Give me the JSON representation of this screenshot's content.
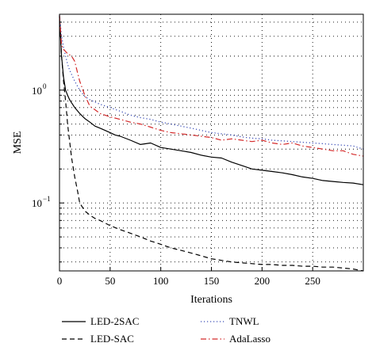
{
  "chart_data": {
    "type": "line",
    "xlabel": "Iterations",
    "ylabel": "MSE",
    "xlim": [
      0,
      300
    ],
    "ylim": [
      0.025,
      4.7
    ],
    "yscale": "log",
    "grid": true,
    "legend": "bottom",
    "x_ticks": [
      0,
      50,
      100,
      150,
      200,
      250
    ],
    "y_ticks": [
      {
        "value": 1,
        "base": "10",
        "exp": "0"
      },
      {
        "value": 0.1,
        "base": "10",
        "exp": "−1"
      }
    ],
    "series": [
      {
        "name": "LED-2SAC",
        "style": "solid",
        "color": "#000000",
        "x": [
          0,
          2,
          4,
          6,
          8,
          10,
          15,
          20,
          25,
          30,
          35,
          40,
          45,
          50,
          55,
          60,
          70,
          80,
          90,
          100,
          110,
          120,
          130,
          140,
          150,
          160,
          170,
          180,
          190,
          200,
          210,
          220,
          230,
          240,
          250,
          260,
          270,
          280,
          290,
          300
        ],
        "y": [
          4.5,
          2.0,
          1.3,
          1.0,
          0.9,
          0.82,
          0.7,
          0.62,
          0.56,
          0.52,
          0.48,
          0.46,
          0.44,
          0.42,
          0.4,
          0.39,
          0.36,
          0.33,
          0.34,
          0.31,
          0.3,
          0.29,
          0.28,
          0.265,
          0.255,
          0.25,
          0.23,
          0.215,
          0.2,
          0.195,
          0.19,
          0.185,
          0.178,
          0.17,
          0.165,
          0.158,
          0.155,
          0.152,
          0.15,
          0.145
        ]
      },
      {
        "name": "LED-SAC",
        "style": "dashed",
        "color": "#000000",
        "x": [
          0,
          2,
          4,
          6,
          8,
          10,
          12,
          15,
          18,
          20,
          25,
          30,
          35,
          40,
          50,
          60,
          70,
          80,
          90,
          100,
          110,
          120,
          130,
          140,
          150,
          160,
          170,
          180,
          190,
          200,
          210,
          220,
          230,
          240,
          250,
          260,
          270,
          280,
          290,
          300
        ],
        "y": [
          4.5,
          2.0,
          1.2,
          0.8,
          0.5,
          0.35,
          0.25,
          0.17,
          0.125,
          0.1,
          0.085,
          0.078,
          0.073,
          0.07,
          0.063,
          0.058,
          0.054,
          0.05,
          0.046,
          0.043,
          0.04,
          0.038,
          0.036,
          0.034,
          0.032,
          0.031,
          0.03,
          0.0295,
          0.029,
          0.0285,
          0.0285,
          0.028,
          0.028,
          0.0275,
          0.0275,
          0.027,
          0.027,
          0.0265,
          0.026,
          0.025
        ]
      },
      {
        "name": "TNWL",
        "style": "dotted",
        "color": "#3c4fb8",
        "x": [
          0,
          2,
          4,
          6,
          8,
          10,
          15,
          20,
          25,
          30,
          40,
          50,
          60,
          70,
          80,
          90,
          100,
          110,
          120,
          130,
          140,
          150,
          160,
          170,
          180,
          190,
          200,
          210,
          220,
          230,
          240,
          250,
          260,
          270,
          280,
          290,
          300
        ],
        "y": [
          4.6,
          3.0,
          2.4,
          2.0,
          1.7,
          1.5,
          1.2,
          1.0,
          0.88,
          0.82,
          0.75,
          0.7,
          0.65,
          0.6,
          0.57,
          0.55,
          0.52,
          0.5,
          0.48,
          0.46,
          0.44,
          0.42,
          0.41,
          0.4,
          0.385,
          0.375,
          0.37,
          0.36,
          0.355,
          0.35,
          0.345,
          0.34,
          0.335,
          0.33,
          0.325,
          0.32,
          0.3
        ]
      },
      {
        "name": "AdaLasso",
        "style": "dashdot",
        "color": "#d42a2a",
        "x": [
          0,
          2,
          4,
          6,
          8,
          10,
          12,
          15,
          18,
          20,
          25,
          30,
          35,
          40,
          50,
          60,
          70,
          80,
          90,
          100,
          110,
          120,
          130,
          140,
          150,
          160,
          170,
          180,
          190,
          200,
          210,
          220,
          230,
          240,
          250,
          260,
          270,
          280,
          290,
          300
        ],
        "y": [
          4.6,
          2.5,
          2.3,
          2.2,
          2.1,
          2.05,
          2.0,
          1.8,
          1.4,
          1.2,
          0.9,
          0.72,
          0.67,
          0.62,
          0.58,
          0.55,
          0.52,
          0.5,
          0.47,
          0.44,
          0.42,
          0.41,
          0.4,
          0.39,
          0.38,
          0.36,
          0.37,
          0.36,
          0.35,
          0.36,
          0.34,
          0.33,
          0.34,
          0.32,
          0.31,
          0.3,
          0.29,
          0.29,
          0.27,
          0.26
        ]
      }
    ]
  }
}
